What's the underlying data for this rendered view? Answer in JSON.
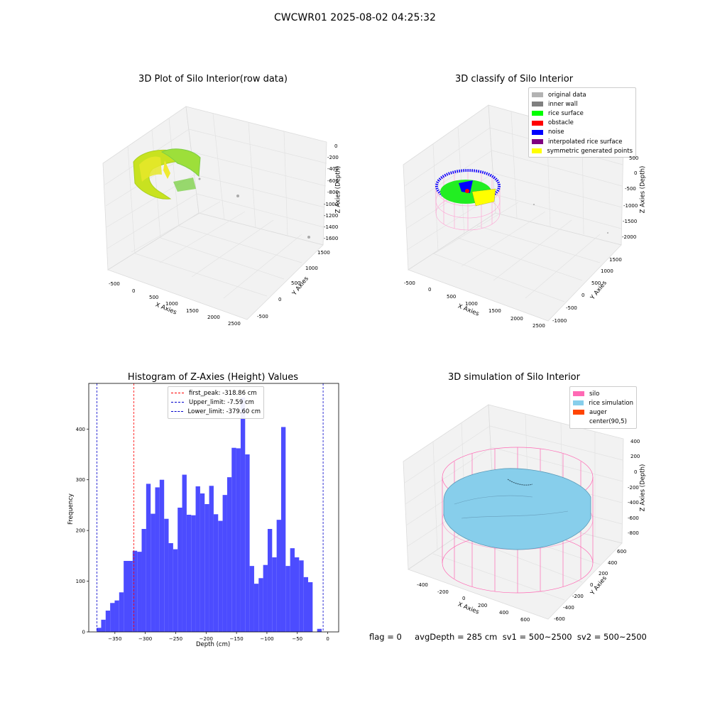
{
  "figure": {
    "title": "CWCWR01 2025-08-02 04:25:32",
    "status_line": "flag = 0     avgDepth = 285 cm  sv1 = 500~2500  sv2 = 500~2500"
  },
  "panels": {
    "raw": {
      "title": "3D Plot of Silo Interior(row data)",
      "xlabel": "X Axies",
      "ylabel": "Y Axies",
      "zlabel": "Z Axies (Depth)",
      "xticks": [
        "-500",
        "0",
        "500",
        "1000",
        "1500",
        "2000",
        "2500"
      ],
      "yticks": [
        "-500",
        "0",
        "500",
        "1000",
        "1500"
      ],
      "zticks": [
        "0",
        "-200",
        "-400",
        "-600",
        "-800",
        "-1000",
        "-1200",
        "-1400",
        "-1600"
      ]
    },
    "classify": {
      "title": "3D classify of Silo Interior",
      "xlabel": "X Axies",
      "ylabel": "Y Axies",
      "zlabel": "Z Axies (Depth)",
      "xticks": [
        "-500",
        "0",
        "500",
        "1000",
        "1500",
        "2000",
        "2500"
      ],
      "yticks": [
        "-1000",
        "-500",
        "0",
        "500",
        "1000",
        "1500"
      ],
      "zticks": [
        "500",
        "0",
        "-500",
        "-1000",
        "-1500",
        "-2000"
      ],
      "legend": [
        {
          "label": "original data",
          "color": "#b3b3b3"
        },
        {
          "label": "inner wall",
          "color": "#808080"
        },
        {
          "label": "rice surface",
          "color": "#00ff00"
        },
        {
          "label": "obstacle",
          "color": "#ff0000"
        },
        {
          "label": "noise",
          "color": "#0000ff"
        },
        {
          "label": "interpolated rice surface",
          "color": "#800080"
        },
        {
          "label": "symmetric generated points",
          "color": "#ffff00"
        }
      ]
    },
    "simulation": {
      "title": "3D simulation of Silo Interior",
      "xlabel": "X Axies",
      "ylabel": "Y Axies",
      "zlabel": "Z Axies (Depth)",
      "xticks": [
        "-400",
        "-200",
        "0",
        "200",
        "400",
        "600"
      ],
      "yticks": [
        "-600",
        "-400",
        "-200",
        "0",
        "200",
        "400",
        "600"
      ],
      "zticks": [
        "400",
        "200",
        "0",
        "-200",
        "-400",
        "-600",
        "-800"
      ],
      "legend": [
        {
          "label": "silo",
          "color": "#ff69b4"
        },
        {
          "label": "rice simulation",
          "color": "#87ceeb"
        },
        {
          "label": "auger",
          "color": "#ff4500"
        },
        {
          "label": "center(90,5)",
          "color": ""
        }
      ]
    }
  },
  "chart_data": {
    "type": "bar",
    "title": "Histogram of Z-Axies (Height) Values",
    "xlabel": "Depth (cm)",
    "ylabel": "Frequency",
    "xlim": [
      -393,
      18
    ],
    "ylim": [
      0,
      490
    ],
    "xticks": [
      -350,
      -300,
      -250,
      -200,
      -150,
      -100,
      -50,
      0
    ],
    "yticks": [
      0,
      100,
      200,
      300,
      400
    ],
    "bin_start": -380,
    "bin_width": 7.4,
    "values": [
      8,
      24,
      42,
      57,
      62,
      78,
      140,
      140,
      160,
      158,
      203,
      292,
      233,
      285,
      300,
      223,
      175,
      163,
      245,
      310,
      231,
      230,
      287,
      273,
      252,
      288,
      232,
      219,
      270,
      305,
      363,
      362,
      462,
      350,
      130,
      95,
      106,
      132,
      203,
      147,
      221,
      404,
      130,
      165,
      147,
      141,
      108,
      98,
      0,
      6
    ],
    "vlines": [
      {
        "label": "first_peak: -318.86 cm",
        "x": -318.86,
        "color": "#ff0000"
      },
      {
        "label": "Upper_limit: -7.59 cm",
        "x": -7.59,
        "color": "#0000cc"
      },
      {
        "label": "Lower_limit: -379.60 cm",
        "x": -379.6,
        "color": "#0000cc"
      }
    ],
    "bar_color": "#4c4cff"
  }
}
